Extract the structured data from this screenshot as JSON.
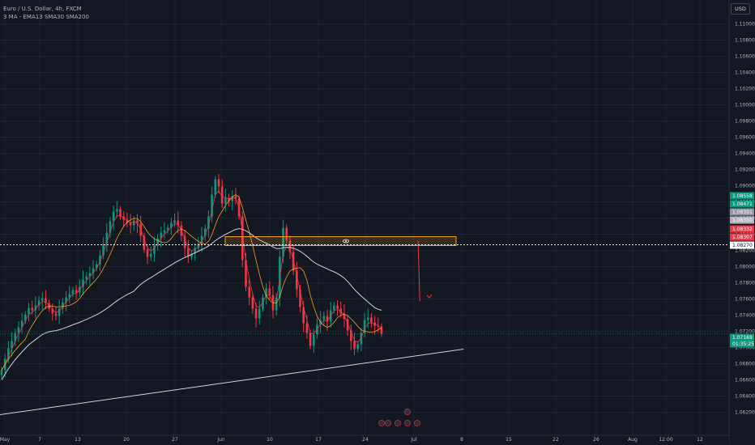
{
  "chart_data": {
    "type": "candlestick",
    "symbol_title": "Euro / U.S. Dollar, 4h, FXCM",
    "indicators_label": "3 MA - EMA13 SMA30 SMA200",
    "currency_button": "USD",
    "price_axis_ticks": [
      "1.11000",
      "1.10800",
      "1.10600",
      "1.10400",
      "1.10200",
      "1.10000",
      "1.09800",
      "1.09600",
      "1.09400",
      "1.09200",
      "1.09000",
      "1.08800",
      "1.08600",
      "1.08400",
      "1.08200",
      "1.08000",
      "1.07800",
      "1.07600",
      "1.07400",
      "1.07200",
      "1.07000",
      "1.06800",
      "1.06600",
      "1.06400",
      "1.06200"
    ],
    "ylim": [
      1.0612,
      1.1118
    ],
    "time_axis_labels": [
      "May",
      "7",
      "13",
      "20",
      "27",
      "Jun",
      "10",
      "17",
      "24",
      "Jul",
      "8",
      "15",
      "22",
      "26",
      "Aug",
      "12:00",
      "12"
    ],
    "price_badges": [
      {
        "label": "1.08558",
        "color": "#089981"
      },
      {
        "label": "1.08471",
        "color": "#089981"
      },
      {
        "label": "1.08391",
        "color": "#9598a1"
      },
      {
        "label": "1.08350",
        "color": "#b2b5be"
      },
      {
        "label": "1.08332",
        "color": "#f23645"
      },
      {
        "label": "1.08307",
        "color": "#f23645"
      },
      {
        "label": "1.08270",
        "color": "#ffffff"
      },
      {
        "label": "1.07169",
        "color": "#089981"
      },
      {
        "label": "01:35:25",
        "color": "#089981"
      }
    ],
    "horizontal_line_price": 1.0827,
    "current_price": 1.07169,
    "zone": {
      "top": 1.0837,
      "bottom": 1.0826,
      "color": "#f7a21b"
    },
    "close_series": [
      1.0672,
      1.0686,
      1.0699,
      1.0708,
      1.0718,
      1.0725,
      1.0733,
      1.0741,
      1.0749,
      1.0746,
      1.0752,
      1.0758,
      1.0761,
      1.0755,
      1.0748,
      1.0742,
      1.0739,
      1.0748,
      1.0756,
      1.0762,
      1.0766,
      1.0771,
      1.0768,
      1.0775,
      1.0784,
      1.0788,
      1.0792,
      1.0798,
      1.0803,
      1.0814,
      1.0828,
      1.0842,
      1.0856,
      1.0868,
      1.0871,
      1.0862,
      1.0858,
      1.0854,
      1.0851,
      1.0857,
      1.0853,
      1.0838,
      1.0821,
      1.0812,
      1.0816,
      1.0826,
      1.0835,
      1.0842,
      1.0845,
      1.0848,
      1.0854,
      1.0857,
      1.0851,
      1.0838,
      1.0823,
      1.0812,
      1.0816,
      1.0823,
      1.0828,
      1.0838,
      1.0847,
      1.0862,
      1.0889,
      1.0908,
      1.0899,
      1.0878,
      1.0885,
      1.0881,
      1.0887,
      1.0884,
      1.0862,
      1.0808,
      1.0775,
      1.0762,
      1.0748,
      1.0736,
      1.0748,
      1.0762,
      1.0773,
      1.0765,
      1.0746,
      1.0762,
      1.0812,
      1.0848,
      1.0832,
      1.0818,
      1.0795,
      1.0772,
      1.075,
      1.073,
      1.0718,
      1.0702,
      1.0716,
      1.0728,
      1.0734,
      1.0739,
      1.0732,
      1.0746,
      1.0752,
      1.0748,
      1.0742,
      1.0735,
      1.0721,
      1.0708,
      1.0698,
      1.0704,
      1.0718,
      1.0734,
      1.0737,
      1.0731,
      1.0727,
      1.0726,
      1.0717
    ],
    "trendlines": [
      {
        "from": [
          0,
          1.0617
        ],
        "to": [
          1.2306,
          1.0698
        ],
        "color": "#d1d4dc"
      },
      {
        "from": [
          1.1098,
          1.0832
        ],
        "to": [
          1.1146,
          1.0757
        ],
        "color": "#f23645"
      }
    ]
  }
}
